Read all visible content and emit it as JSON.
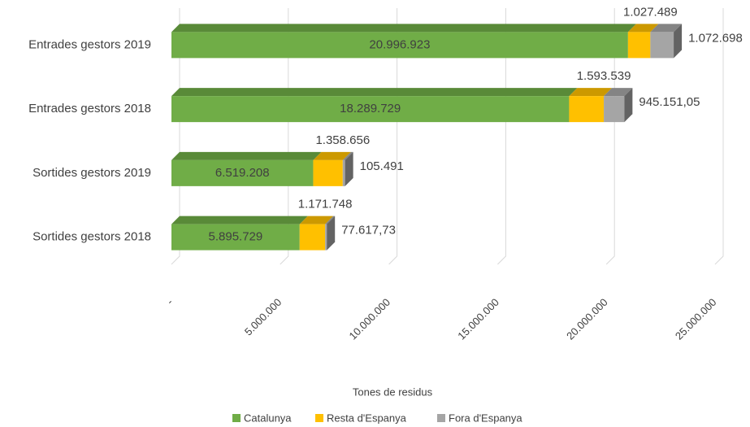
{
  "chart_data": {
    "type": "bar",
    "orientation": "horizontal",
    "stacked": true,
    "categories": [
      "Entrades gestors 2019",
      "Entrades gestors 2018",
      "Sortides gestors 2019",
      "Sortides gestors 2018"
    ],
    "series": [
      {
        "name": "Catalunya",
        "color": "#70ad47",
        "values": [
          20996923,
          18289729,
          6519208,
          5895729
        ],
        "value_labels": [
          "20.996.923",
          "18.289.729",
          "6.519.208",
          "5.895.729"
        ]
      },
      {
        "name": "Resta d'Espanya",
        "color": "#ffc000",
        "values": [
          1027489,
          1593539,
          1358656,
          1171748
        ],
        "value_labels": [
          "1.027.489",
          "1.593.539",
          "1.358.656",
          "1.171.748"
        ]
      },
      {
        "name": "Fora d'Espanya",
        "color": "#a5a5a5",
        "values": [
          1072698,
          945151.05,
          105491,
          77617.73
        ],
        "value_labels": [
          "1.072.698",
          "945.151,05",
          "105.491",
          "77.617,73"
        ]
      }
    ],
    "xlabel": "Tones de residus",
    "xlim": [
      0,
      25000000
    ],
    "xticks": [
      {
        "value": 0,
        "label": "-"
      },
      {
        "value": 5000000,
        "label": "5.000.000"
      },
      {
        "value": 10000000,
        "label": "10.000.000"
      },
      {
        "value": 15000000,
        "label": "15.000.000"
      },
      {
        "value": 20000000,
        "label": "20.000.000"
      },
      {
        "value": 25000000,
        "label": "25.000.000"
      }
    ],
    "grid": true,
    "legend": "bottom"
  }
}
